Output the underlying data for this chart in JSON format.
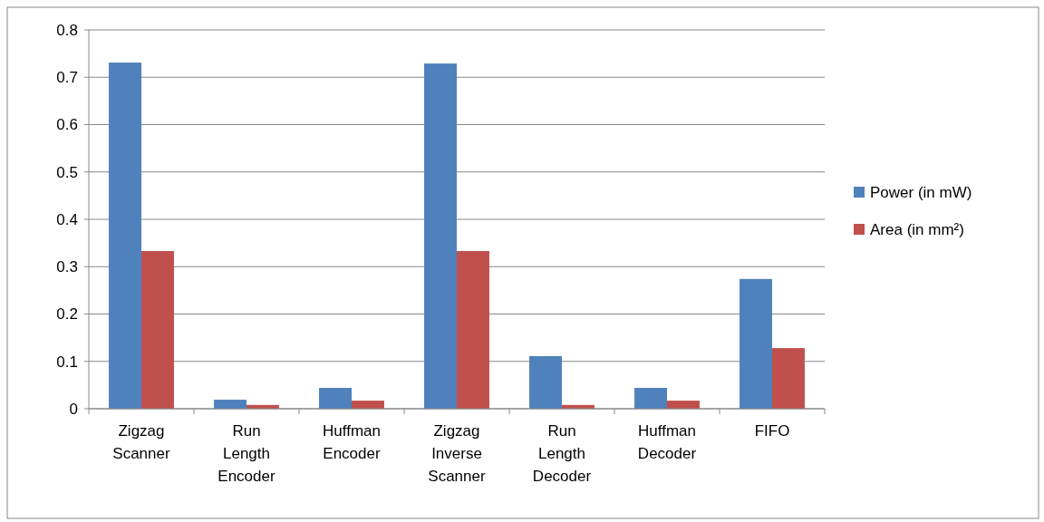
{
  "chart_data": {
    "type": "bar",
    "categories": [
      "Zigzag Scanner",
      "Run Length Encoder",
      "Huffman Encoder",
      "Zigzag Inverse Scanner",
      "Run Length Decoder",
      "Huffman Decoder",
      "FIFO"
    ],
    "series": [
      {
        "name": "Power (in mW)",
        "color": "#4f81bd",
        "values": [
          0.731,
          0.019,
          0.044,
          0.729,
          0.111,
          0.044,
          0.274
        ]
      },
      {
        "name": "Area (in mm²)",
        "color": "#c0504d",
        "values": [
          0.333,
          0.008,
          0.017,
          0.333,
          0.008,
          0.017,
          0.128
        ]
      }
    ],
    "ylim": [
      0,
      0.8
    ],
    "yticks": [
      {
        "value": 0,
        "label": "0"
      },
      0.1,
      0.2,
      0.3,
      0.4,
      0.5,
      0.6,
      0.7,
      0.8
    ],
    "grid": "y",
    "legend": "right"
  }
}
